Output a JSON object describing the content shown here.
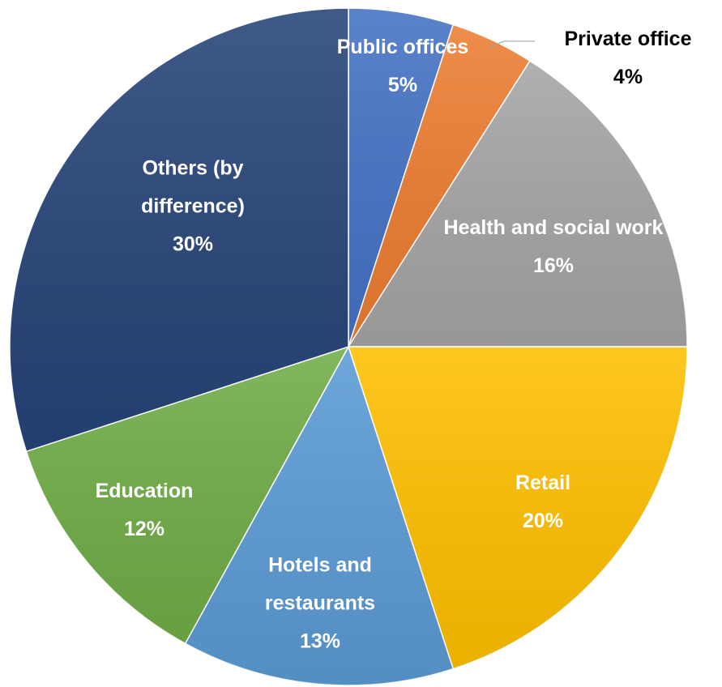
{
  "chart_data": {
    "type": "pie",
    "categories": [
      "Public offices",
      "Private office",
      "Health and social work",
      "Retail",
      "Hotels and restaurants",
      "Education",
      "Others (by difference)"
    ],
    "values": [
      5,
      4,
      16,
      20,
      13,
      12,
      30
    ],
    "value_labels": [
      "5%",
      "4%",
      "16%",
      "20%",
      "13%",
      "12%",
      "30%"
    ],
    "colors": [
      "#4472c4",
      "#ed7d31",
      "#a5a5a5",
      "#ffc000",
      "#5b9bd5",
      "#70ad47",
      "#264478"
    ]
  }
}
